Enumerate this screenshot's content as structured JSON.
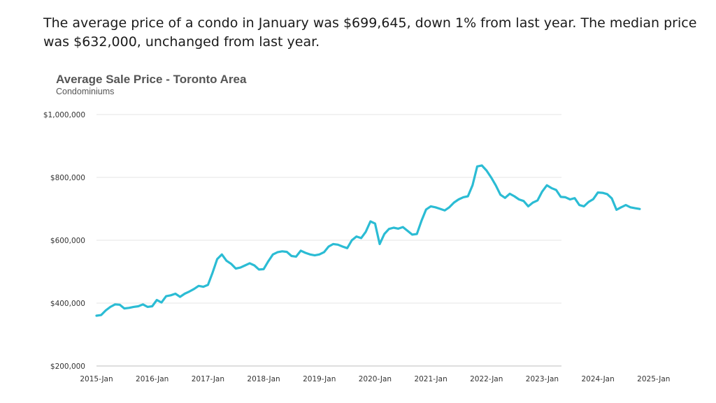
{
  "intro_text": "The average price of a condo in January was $699,645, down 1% from last year. The median price was $632,000, unchanged from last year.",
  "chart_data": {
    "type": "line",
    "title": "Average Sale Price - Toronto Area",
    "subtitle": "Condominiums",
    "xlabel": "",
    "ylabel": "",
    "ylim": [
      200000,
      1000000
    ],
    "y_ticks": [
      200000,
      400000,
      600000,
      800000,
      1000000
    ],
    "y_tick_labels": [
      "$200,000",
      "$400,000",
      "$600,000",
      "$800,000",
      "$1,000,000"
    ],
    "x_tick_labels": [
      "2015-Jan",
      "2016-Jan",
      "2017-Jan",
      "2018-Jan",
      "2019-Jan",
      "2020-Jan",
      "2021-Jan",
      "2022-Jan",
      "2023-Jan",
      "2024-Jan",
      "2025-Jan"
    ],
    "grid": true,
    "line_color": "#2bbcd4",
    "series": [
      {
        "name": "",
        "x_start": "2015-Jan",
        "values": [
          360000,
          362000,
          377000,
          388000,
          396000,
          395000,
          383000,
          385000,
          388000,
          390000,
          396000,
          388000,
          390000,
          410000,
          402000,
          422000,
          425000,
          430000,
          420000,
          430000,
          437000,
          445000,
          455000,
          452000,
          458000,
          497000,
          540000,
          555000,
          535000,
          525000,
          510000,
          513000,
          520000,
          527000,
          520000,
          507000,
          508000,
          533000,
          555000,
          562000,
          565000,
          563000,
          550000,
          548000,
          567000,
          560000,
          555000,
          552000,
          555000,
          562000,
          580000,
          588000,
          586000,
          580000,
          575000,
          600000,
          612000,
          607000,
          627000,
          660000,
          653000,
          588000,
          620000,
          636000,
          640000,
          637000,
          642000,
          630000,
          618000,
          620000,
          662000,
          698000,
          708000,
          705000,
          700000,
          695000,
          705000,
          720000,
          730000,
          737000,
          740000,
          775000,
          835000,
          838000,
          822000,
          800000,
          775000,
          745000,
          735000,
          748000,
          740000,
          730000,
          725000,
          708000,
          720000,
          727000,
          755000,
          775000,
          766000,
          760000,
          738000,
          737000,
          730000,
          734000,
          712000,
          708000,
          722000,
          731000,
          752000,
          751000,
          747000,
          733000,
          697000,
          705000,
          712000,
          705000,
          702000,
          699645
        ]
      }
    ]
  }
}
